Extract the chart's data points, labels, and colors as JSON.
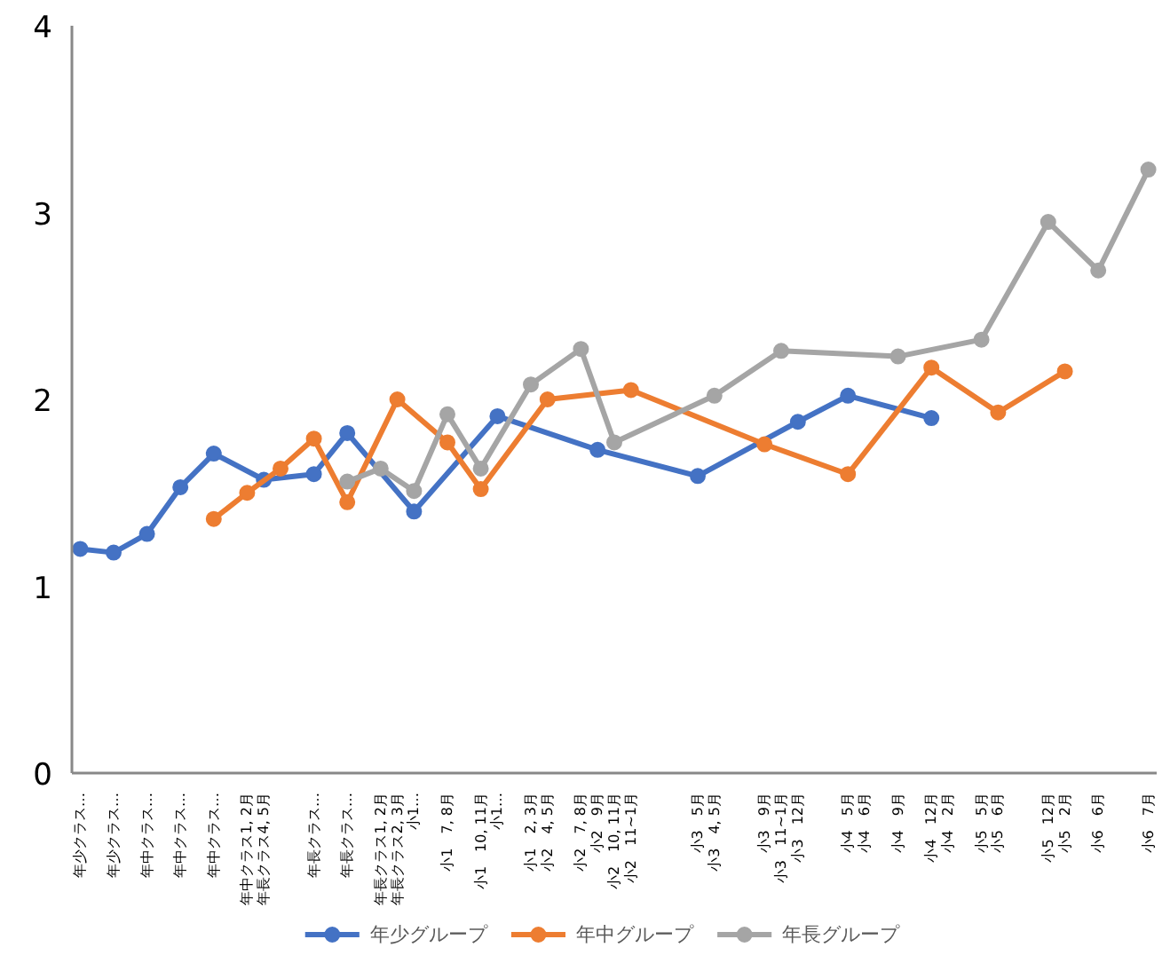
{
  "chart_data": {
    "type": "line",
    "categories": [
      "年少クラス…",
      null,
      "年少クラス…",
      null,
      "年中クラス…",
      null,
      "年中クラス…",
      null,
      "年中クラス…",
      null,
      "年中クラス1, 2月",
      "年長クラス4, 5月",
      null,
      null,
      "年長クラス…",
      null,
      "年長クラス…",
      null,
      "年長クラス1, 2月",
      "年長クラス2, 3月",
      "小1…",
      null,
      "小1　7, 8月",
      null,
      "小1　10, 11月",
      "小1…",
      null,
      "小1　2, 3月",
      "小2　4, 5月",
      null,
      "小2　7, 8月",
      "小2　9月",
      "小2　10, 11月",
      "小2　11~1月",
      null,
      null,
      null,
      "小3　5月",
      "小3　4, 5月",
      null,
      null,
      "小3　9月",
      "小3　11~1月",
      "小3　12月",
      null,
      null,
      "小4　5月",
      "小4　6月",
      null,
      "小4　9月",
      null,
      "小4　12月",
      "小4　2月",
      null,
      "小5　5月",
      "小5　6月",
      null,
      null,
      "小5　12月",
      "小5　2月",
      null,
      "小6　6月",
      null,
      null,
      "小6　7月"
    ],
    "ylim": [
      0,
      4
    ],
    "yticks": [
      0,
      1,
      2,
      3,
      4
    ],
    "legend": "bottom",
    "marker": "circle",
    "line_style": "solid",
    "series": [
      {
        "name": "年少グループ",
        "color": "#4472c4",
        "values": [
          1.2,
          null,
          1.18,
          null,
          1.28,
          null,
          1.53,
          null,
          1.71,
          null,
          null,
          1.57,
          null,
          null,
          1.6,
          null,
          1.82,
          null,
          null,
          null,
          1.4,
          null,
          null,
          null,
          null,
          1.91,
          null,
          null,
          null,
          null,
          null,
          1.73,
          null,
          null,
          null,
          null,
          null,
          1.59,
          null,
          null,
          null,
          null,
          null,
          1.88,
          null,
          null,
          2.02,
          null,
          null,
          null,
          null,
          1.9,
          null,
          null,
          null,
          null,
          null,
          null,
          null,
          null,
          null,
          null,
          null,
          null,
          null
        ]
      },
      {
        "name": "年中グループ",
        "color": "#ed7d31",
        "values": [
          null,
          null,
          null,
          null,
          null,
          null,
          null,
          null,
          1.36,
          null,
          1.5,
          null,
          1.63,
          null,
          1.79,
          null,
          1.45,
          null,
          null,
          2.0,
          null,
          null,
          1.77,
          null,
          1.52,
          null,
          null,
          null,
          2.0,
          null,
          null,
          null,
          null,
          2.05,
          null,
          null,
          null,
          null,
          null,
          null,
          null,
          1.76,
          null,
          null,
          null,
          null,
          1.6,
          null,
          null,
          null,
          null,
          2.17,
          null,
          null,
          null,
          1.93,
          null,
          null,
          null,
          2.15,
          null,
          null,
          null,
          null,
          null
        ]
      },
      {
        "name": "年長グループ",
        "color": "#a5a5a5",
        "values": [
          null,
          null,
          null,
          null,
          null,
          null,
          null,
          null,
          null,
          null,
          null,
          null,
          null,
          null,
          null,
          null,
          1.56,
          null,
          1.63,
          null,
          1.51,
          null,
          1.92,
          null,
          1.63,
          null,
          null,
          2.08,
          null,
          null,
          2.27,
          null,
          1.77,
          null,
          null,
          null,
          null,
          null,
          2.02,
          null,
          null,
          null,
          2.26,
          null,
          null,
          null,
          null,
          null,
          null,
          2.23,
          null,
          null,
          null,
          null,
          2.32,
          null,
          null,
          null,
          2.95,
          null,
          null,
          2.69,
          null,
          null,
          3.23
        ]
      }
    ]
  }
}
